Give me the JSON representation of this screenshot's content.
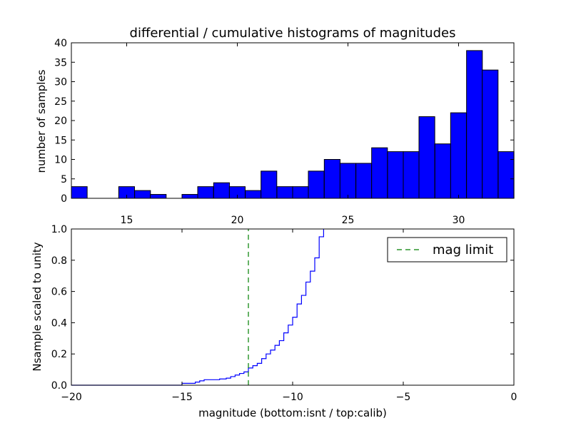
{
  "chart_data": [
    {
      "type": "bar",
      "title": "differential / cumulative histograms of magnitudes",
      "ylabel": "number of samples",
      "xlabel": "",
      "xlim": [
        12.5,
        32.5
      ],
      "ylim": [
        0,
        40
      ],
      "grid": false,
      "x_ticks": [
        "15",
        "20",
        "25",
        "30"
      ],
      "y_ticks": [
        "0",
        "5",
        "10",
        "15",
        "20",
        "25",
        "30",
        "35",
        "40"
      ],
      "bin_width": 0.714,
      "bins": [
        {
          "x": 12.5,
          "value": 3
        },
        {
          "x": 13.21,
          "value": 0
        },
        {
          "x": 13.93,
          "value": 0
        },
        {
          "x": 14.64,
          "value": 3
        },
        {
          "x": 15.36,
          "value": 2
        },
        {
          "x": 16.07,
          "value": 1
        },
        {
          "x": 16.79,
          "value": 0
        },
        {
          "x": 17.5,
          "value": 1
        },
        {
          "x": 18.21,
          "value": 3
        },
        {
          "x": 18.93,
          "value": 4
        },
        {
          "x": 19.64,
          "value": 3
        },
        {
          "x": 20.36,
          "value": 2
        },
        {
          "x": 21.07,
          "value": 7
        },
        {
          "x": 21.79,
          "value": 3
        },
        {
          "x": 22.5,
          "value": 3
        },
        {
          "x": 23.21,
          "value": 7
        },
        {
          "x": 23.93,
          "value": 10
        },
        {
          "x": 24.64,
          "value": 9
        },
        {
          "x": 25.36,
          "value": 9
        },
        {
          "x": 26.07,
          "value": 13
        },
        {
          "x": 26.79,
          "value": 12
        },
        {
          "x": 27.5,
          "value": 12
        },
        {
          "x": 28.21,
          "value": 21
        },
        {
          "x": 28.93,
          "value": 14
        },
        {
          "x": 29.64,
          "value": 22
        },
        {
          "x": 30.36,
          "value": 38
        },
        {
          "x": 31.07,
          "value": 33
        },
        {
          "x": 31.79,
          "value": 12
        }
      ],
      "bar_color": "#0000ff"
    },
    {
      "type": "line",
      "xlabel": "magnitude (bottom:isnt / top:calib)",
      "ylabel": "Nsample scaled to unity",
      "xlim": [
        -20,
        0
      ],
      "ylim": [
        0,
        1.0
      ],
      "grid": false,
      "x_ticks": [
        "−20",
        "−15",
        "−10",
        "−5",
        "0"
      ],
      "y_ticks": [
        "0.0",
        "0.2",
        "0.4",
        "0.6",
        "0.8",
        "1.0"
      ],
      "legend": {
        "placement": "top-right",
        "entries": [
          "mag limit"
        ]
      },
      "series": [
        {
          "style": "step",
          "color": "#0000ff",
          "points": [
            [
              -20.0,
              0.0
            ],
            [
              -15.0,
              0.0
            ],
            [
              -15.0,
              0.012
            ],
            [
              -14.4,
              0.012
            ],
            [
              -14.4,
              0.02
            ],
            [
              -14.2,
              0.02
            ],
            [
              -14.2,
              0.028
            ],
            [
              -14.0,
              0.028
            ],
            [
              -14.0,
              0.035
            ],
            [
              -13.3,
              0.035
            ],
            [
              -13.3,
              0.04
            ],
            [
              -13.0,
              0.04
            ],
            [
              -13.0,
              0.045
            ],
            [
              -12.8,
              0.045
            ],
            [
              -12.8,
              0.055
            ],
            [
              -12.6,
              0.055
            ],
            [
              -12.6,
              0.065
            ],
            [
              -12.4,
              0.065
            ],
            [
              -12.4,
              0.075
            ],
            [
              -12.2,
              0.075
            ],
            [
              -12.2,
              0.085
            ],
            [
              -12.0,
              0.085
            ],
            [
              -12.0,
              0.11
            ],
            [
              -11.8,
              0.11
            ],
            [
              -11.8,
              0.125
            ],
            [
              -11.6,
              0.125
            ],
            [
              -11.6,
              0.14
            ],
            [
              -11.4,
              0.14
            ],
            [
              -11.4,
              0.17
            ],
            [
              -11.2,
              0.17
            ],
            [
              -11.2,
              0.2
            ],
            [
              -11.0,
              0.2
            ],
            [
              -11.0,
              0.225
            ],
            [
              -10.8,
              0.225
            ],
            [
              -10.8,
              0.255
            ],
            [
              -10.6,
              0.255
            ],
            [
              -10.6,
              0.285
            ],
            [
              -10.4,
              0.285
            ],
            [
              -10.4,
              0.335
            ],
            [
              -10.2,
              0.335
            ],
            [
              -10.2,
              0.385
            ],
            [
              -10.0,
              0.385
            ],
            [
              -10.0,
              0.435
            ],
            [
              -9.8,
              0.435
            ],
            [
              -9.8,
              0.52
            ],
            [
              -9.6,
              0.52
            ],
            [
              -9.6,
              0.575
            ],
            [
              -9.4,
              0.575
            ],
            [
              -9.4,
              0.66
            ],
            [
              -9.2,
              0.66
            ],
            [
              -9.2,
              0.73
            ],
            [
              -9.0,
              0.73
            ],
            [
              -9.0,
              0.815
            ],
            [
              -8.8,
              0.815
            ],
            [
              -8.8,
              0.95
            ],
            [
              -8.6,
              0.95
            ],
            [
              -8.6,
              1.0
            ]
          ]
        },
        {
          "name": "mag limit",
          "style": "dashed",
          "color": "#007f00",
          "points": [
            [
              -12.0,
              0.0
            ],
            [
              -12.0,
              1.0
            ]
          ]
        }
      ]
    }
  ]
}
